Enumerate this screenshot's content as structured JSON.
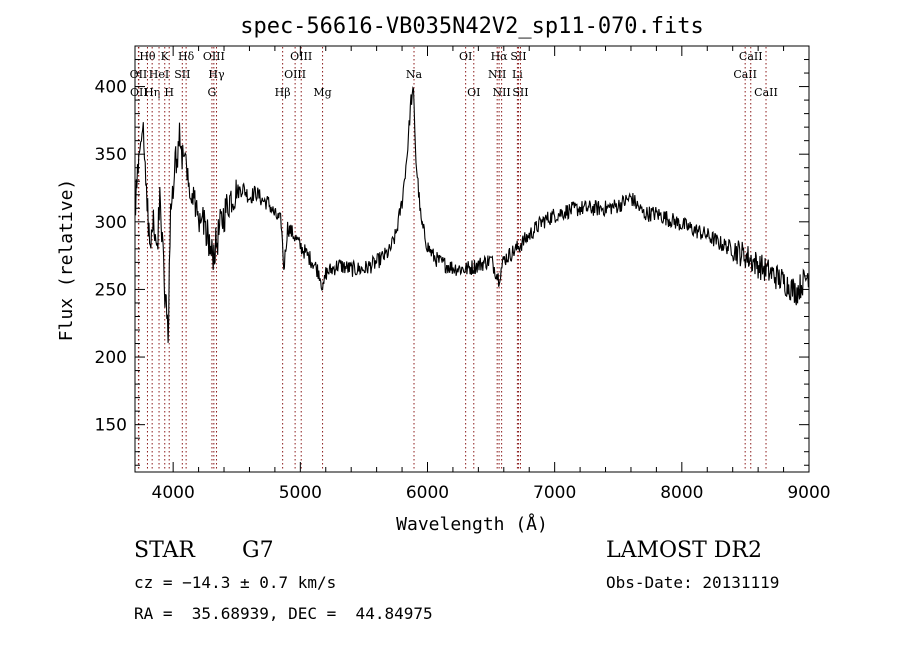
{
  "chart_data": {
    "type": "line",
    "title": "spec-56616-VB035N42V2_sp11-070.fits",
    "xlabel": "Wavelength (Å)",
    "ylabel": "Flux (relative)",
    "xlim": [
      3700,
      9000
    ],
    "ylim": [
      115,
      430
    ],
    "xticks": [
      4000,
      5000,
      6000,
      7000,
      8000,
      9000
    ],
    "yticks": [
      150,
      200,
      250,
      300,
      350,
      400
    ],
    "grid": false,
    "line_color": "#000000",
    "marker_color": "#8b1a1a",
    "continuum": [
      [
        3700,
        305
      ],
      [
        3730,
        350
      ],
      [
        3760,
        380
      ],
      [
        3790,
        320
      ],
      [
        3820,
        280
      ],
      [
        3850,
        300
      ],
      [
        3880,
        290
      ],
      [
        3900,
        320
      ],
      [
        3930,
        255
      ],
      [
        3960,
        215
      ],
      [
        3980,
        320
      ],
      [
        4000,
        330
      ],
      [
        4050,
        360
      ],
      [
        4100,
        340
      ],
      [
        4150,
        320
      ],
      [
        4200,
        305
      ],
      [
        4250,
        300
      ],
      [
        4300,
        275
      ],
      [
        4330,
        280
      ],
      [
        4380,
        300
      ],
      [
        4450,
        318
      ],
      [
        4500,
        322
      ],
      [
        4550,
        325
      ],
      [
        4600,
        318
      ],
      [
        4650,
        322
      ],
      [
        4700,
        316
      ],
      [
        4750,
        314
      ],
      [
        4800,
        305
      ],
      [
        4850,
        300
      ],
      [
        4870,
        265
      ],
      [
        4900,
        296
      ],
      [
        4950,
        290
      ],
      [
        5000,
        282
      ],
      [
        5050,
        276
      ],
      [
        5100,
        270
      ],
      [
        5150,
        262
      ],
      [
        5180,
        250
      ],
      [
        5200,
        262
      ],
      [
        5300,
        268
      ],
      [
        5400,
        265
      ],
      [
        5500,
        265
      ],
      [
        5600,
        270
      ],
      [
        5700,
        278
      ],
      [
        5750,
        290
      ],
      [
        5800,
        315
      ],
      [
        5840,
        350
      ],
      [
        5870,
        390
      ],
      [
        5890,
        395
      ],
      [
        5910,
        345
      ],
      [
        5950,
        300
      ],
      [
        6000,
        282
      ],
      [
        6050,
        274
      ],
      [
        6100,
        270
      ],
      [
        6200,
        266
      ],
      [
        6300,
        265
      ],
      [
        6400,
        268
      ],
      [
        6500,
        272
      ],
      [
        6560,
        258
      ],
      [
        6600,
        272
      ],
      [
        6700,
        280
      ],
      [
        6800,
        290
      ],
      [
        6900,
        300
      ],
      [
        7000,
        305
      ],
      [
        7100,
        308
      ],
      [
        7200,
        310
      ],
      [
        7300,
        310
      ],
      [
        7400,
        310
      ],
      [
        7500,
        312
      ],
      [
        7600,
        318
      ],
      [
        7700,
        306
      ],
      [
        7800,
        306
      ],
      [
        7900,
        302
      ],
      [
        8000,
        298
      ],
      [
        8100,
        294
      ],
      [
        8200,
        290
      ],
      [
        8300,
        284
      ],
      [
        8400,
        280
      ],
      [
        8500,
        275
      ],
      [
        8600,
        268
      ],
      [
        8700,
        262
      ],
      [
        8800,
        256
      ],
      [
        8900,
        248
      ],
      [
        9000,
        262
      ]
    ],
    "lines": [
      {
        "name": "Hθ",
        "x": 3798,
        "row": 0
      },
      {
        "name": "OII",
        "x": 3727,
        "row": 1
      },
      {
        "name": "OII",
        "x": 3730,
        "row": 2
      },
      {
        "name": "Hη",
        "x": 3835,
        "row": 2
      },
      {
        "name": "HeI",
        "x": 3889,
        "row": 1
      },
      {
        "name": "K",
        "x": 3934,
        "row": 0
      },
      {
        "name": "H",
        "x": 3969,
        "row": 2
      },
      {
        "name": "SII",
        "x": 4072,
        "row": 1
      },
      {
        "name": "Hδ",
        "x": 4102,
        "row": 0
      },
      {
        "name": "OIII",
        "x": 4320,
        "row": 0
      },
      {
        "name": "Hγ",
        "x": 4341,
        "row": 1
      },
      {
        "name": "G",
        "x": 4305,
        "row": 2
      },
      {
        "name": "Hβ",
        "x": 4861,
        "row": 2
      },
      {
        "name": "OIII",
        "x": 4959,
        "row": 1
      },
      {
        "name": "OIII",
        "x": 5007,
        "row": 0
      },
      {
        "name": "Mg",
        "x": 5175,
        "row": 2
      },
      {
        "name": "Na",
        "x": 5894,
        "row": 1
      },
      {
        "name": "OI",
        "x": 6300,
        "row": 0
      },
      {
        "name": "OI",
        "x": 6364,
        "row": 2
      },
      {
        "name": "Hα",
        "x": 6563,
        "row": 0
      },
      {
        "name": "NII",
        "x": 6548,
        "row": 1
      },
      {
        "name": "NII",
        "x": 6583,
        "row": 2
      },
      {
        "name": "SII",
        "x": 6716,
        "row": 0
      },
      {
        "name": "Li",
        "x": 6707,
        "row": 1
      },
      {
        "name": "SII",
        "x": 6731,
        "row": 2
      },
      {
        "name": "CaII",
        "x": 8498,
        "row": 1
      },
      {
        "name": "CaII",
        "x": 8542,
        "row": 0
      },
      {
        "name": "CaII",
        "x": 8662,
        "row": 2
      }
    ]
  },
  "info": {
    "object_class": "STAR",
    "subclass": "G7",
    "redshift": "cz = −14.3 ± 0.7 km/s",
    "coords": "RA =  35.68939, DEC =  44.84975",
    "survey": "LAMOST DR2",
    "obs_date": "Obs-Date: 20131119"
  }
}
